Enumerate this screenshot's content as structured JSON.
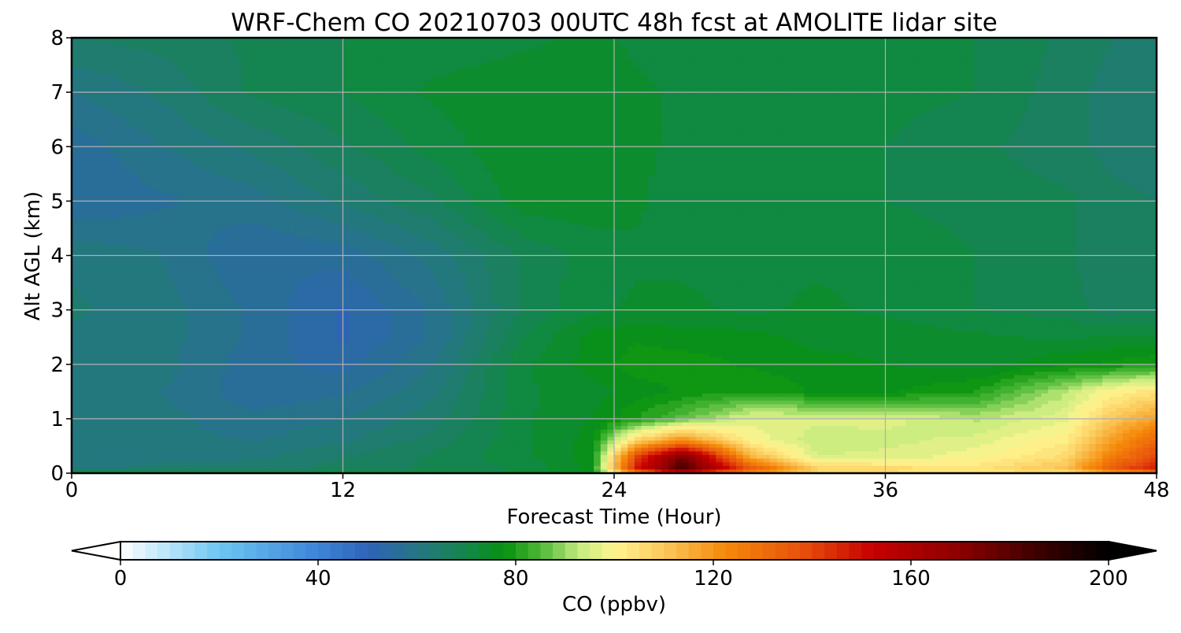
{
  "chart_data": {
    "type": "heatmap",
    "title": "WRF-Chem CO  20210703 00UTC 48h fcst at AMOLITE lidar site",
    "xlabel": "Forecast Time (Hour)",
    "ylabel": "Alt AGL (km)",
    "xlim": [
      0,
      48
    ],
    "ylim": [
      0,
      8
    ],
    "x_ticks": [
      0,
      12,
      24,
      36,
      48
    ],
    "y_ticks": [
      0,
      1,
      2,
      3,
      4,
      5,
      6,
      7,
      8
    ],
    "grid": true,
    "colorbar": {
      "label": "CO  (ppbv)",
      "range": [
        0,
        200
      ],
      "ticks": [
        0,
        40,
        80,
        120,
        160,
        200
      ],
      "extend": "both",
      "stops": [
        {
          "value": 0,
          "color": "#ffffff"
        },
        {
          "value": 20,
          "color": "#6cc6f2"
        },
        {
          "value": 40,
          "color": "#3d85d8"
        },
        {
          "value": 50,
          "color": "#2f63b8"
        },
        {
          "value": 62,
          "color": "#22797a"
        },
        {
          "value": 72,
          "color": "#0f8a3c"
        },
        {
          "value": 78,
          "color": "#07920d"
        },
        {
          "value": 85,
          "color": "#4db838"
        },
        {
          "value": 93,
          "color": "#c7ec7e"
        },
        {
          "value": 100,
          "color": "#fff590"
        },
        {
          "value": 110,
          "color": "#fbc85a"
        },
        {
          "value": 122,
          "color": "#f58b0a"
        },
        {
          "value": 138,
          "color": "#e8500c"
        },
        {
          "value": 152,
          "color": "#c80000"
        },
        {
          "value": 170,
          "color": "#8c0000"
        },
        {
          "value": 185,
          "color": "#400000"
        },
        {
          "value": 200,
          "color": "#000000"
        }
      ]
    },
    "x": [
      0,
      4,
      8,
      12,
      16,
      20,
      23,
      25,
      27,
      30,
      33,
      36,
      40,
      44,
      46,
      48
    ],
    "y": [
      0,
      0.05,
      0.3,
      0.6,
      1.0,
      1.5,
      2.0,
      2.5,
      3.0,
      4.0,
      5.0,
      6.0,
      7.0,
      8.0
    ],
    "z": [
      [
        80,
        78,
        78,
        80,
        79,
        78,
        78,
        102,
        110,
        104,
        102,
        100,
        99,
        98,
        100,
        100
      ],
      [
        62,
        63,
        64,
        66,
        68,
        70,
        76,
        150,
        185,
        140,
        110,
        108,
        105,
        112,
        135,
        150
      ],
      [
        62,
        62,
        62,
        65,
        68,
        72,
        76,
        140,
        175,
        115,
        95,
        96,
        99,
        106,
        125,
        140
      ],
      [
        62,
        61,
        60,
        62,
        66,
        72,
        76,
        108,
        122,
        100,
        93,
        94,
        96,
        102,
        118,
        132
      ],
      [
        62,
        61,
        58,
        60,
        64,
        72,
        75,
        80,
        86,
        96,
        96,
        96,
        92,
        97,
        110,
        118
      ],
      [
        62,
        60,
        56,
        57,
        62,
        72,
        74,
        76,
        78,
        80,
        77,
        77,
        80,
        92,
        100,
        104
      ],
      [
        62,
        61,
        56,
        54,
        60,
        72,
        76,
        79,
        79,
        77,
        76,
        75,
        74,
        77,
        78,
        80
      ],
      [
        62,
        61,
        57,
        52,
        58,
        70,
        76,
        77,
        76,
        76,
        74,
        74,
        73,
        72,
        73,
        73
      ],
      [
        63,
        61,
        57,
        52,
        58,
        68,
        72,
        73,
        73,
        72,
        73,
        72,
        70,
        69,
        66,
        67
      ],
      [
        62,
        60,
        55,
        56,
        61,
        68,
        71,
        72,
        72,
        72,
        72,
        72,
        70,
        68,
        65,
        66
      ],
      [
        55,
        57,
        59,
        63,
        67,
        74,
        74,
        73,
        71,
        71,
        71,
        70,
        69,
        68,
        66,
        65
      ],
      [
        56,
        60,
        63,
        67,
        71,
        75,
        75,
        73,
        72,
        70,
        71,
        70,
        68,
        66,
        64,
        63
      ],
      [
        60,
        63,
        68,
        70,
        73,
        74,
        74,
        73,
        72,
        70,
        71,
        71,
        70,
        66,
        64,
        63
      ],
      [
        65,
        66,
        68,
        70,
        71,
        72,
        73,
        72,
        71,
        70,
        70,
        71,
        70,
        67,
        65,
        64
      ]
    ]
  }
}
